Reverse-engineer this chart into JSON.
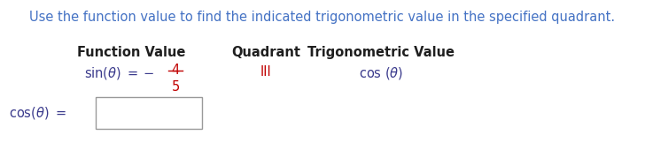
{
  "background_color": "#ffffff",
  "title_text": "Use the function value to find the indicated trigonometric value in the specified quadrant.",
  "title_color": "#4472c4",
  "title_fontsize": 10.5,
  "header_function_value": "Function Value",
  "header_quadrant": "Quadrant",
  "header_trig_value": "Trigonometric Value",
  "header_color": "#1f1f1f",
  "header_fontsize": 10.5,
  "fraction_num": "4",
  "fraction_den": "5",
  "fraction_color": "#c00000",
  "func_value_color": "#3a3a8c",
  "quadrant_text": "III",
  "quadrant_color": "#c00000",
  "quadrant_fontsize": 10.5,
  "trig_value_color": "#3a3a8c",
  "trig_value_fontsize": 10.5,
  "answer_label_color": "#3a3a8c",
  "answer_label_fontsize": 10.5,
  "box_edge_color": "#999999"
}
